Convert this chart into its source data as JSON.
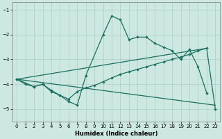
{
  "xlabel": "Humidex (Indice chaleur)",
  "bg_color": "#cce8e0",
  "grid_color": "#aacfc8",
  "line_color": "#1a7060",
  "xlim": [
    -0.5,
    23.5
  ],
  "ylim": [
    -5.5,
    -0.7
  ],
  "yticks": [
    -5,
    -4,
    -3,
    -2,
    -1
  ],
  "xticks": [
    0,
    1,
    2,
    3,
    4,
    5,
    6,
    7,
    8,
    9,
    10,
    11,
    12,
    13,
    14,
    15,
    16,
    17,
    18,
    19,
    20,
    21,
    22,
    23
  ],
  "curve1_x": [
    0,
    1,
    2,
    3,
    4,
    5,
    6,
    7,
    8,
    10,
    11,
    12,
    13,
    14,
    15,
    16,
    17,
    18,
    19,
    20,
    21,
    22
  ],
  "curve1_y": [
    -3.8,
    -4.0,
    -4.1,
    -4.0,
    -4.3,
    -4.45,
    -4.7,
    -4.85,
    -3.65,
    -2.0,
    -1.25,
    -1.4,
    -2.2,
    -2.1,
    -2.1,
    -2.35,
    -2.5,
    -2.65,
    -3.0,
    -2.6,
    -3.3,
    -4.35
  ],
  "curve2_x": [
    0,
    2,
    3,
    4,
    5,
    6,
    7,
    8,
    9,
    10,
    11,
    12,
    13,
    14,
    15,
    16,
    17,
    18,
    19,
    20,
    21,
    22,
    23
  ],
  "curve2_y": [
    -3.8,
    -4.1,
    -4.0,
    -4.25,
    -4.45,
    -4.6,
    -4.3,
    -4.15,
    -4.05,
    -3.9,
    -3.75,
    -3.6,
    -3.5,
    -3.4,
    -3.3,
    -3.2,
    -3.1,
    -3.0,
    -2.9,
    -2.8,
    -2.65,
    -2.55,
    -5.0
  ],
  "line3_x": [
    0,
    22
  ],
  "line3_y": [
    -3.8,
    -2.55
  ],
  "line4_x": [
    0,
    23
  ],
  "line4_y": [
    -3.8,
    -4.85
  ]
}
